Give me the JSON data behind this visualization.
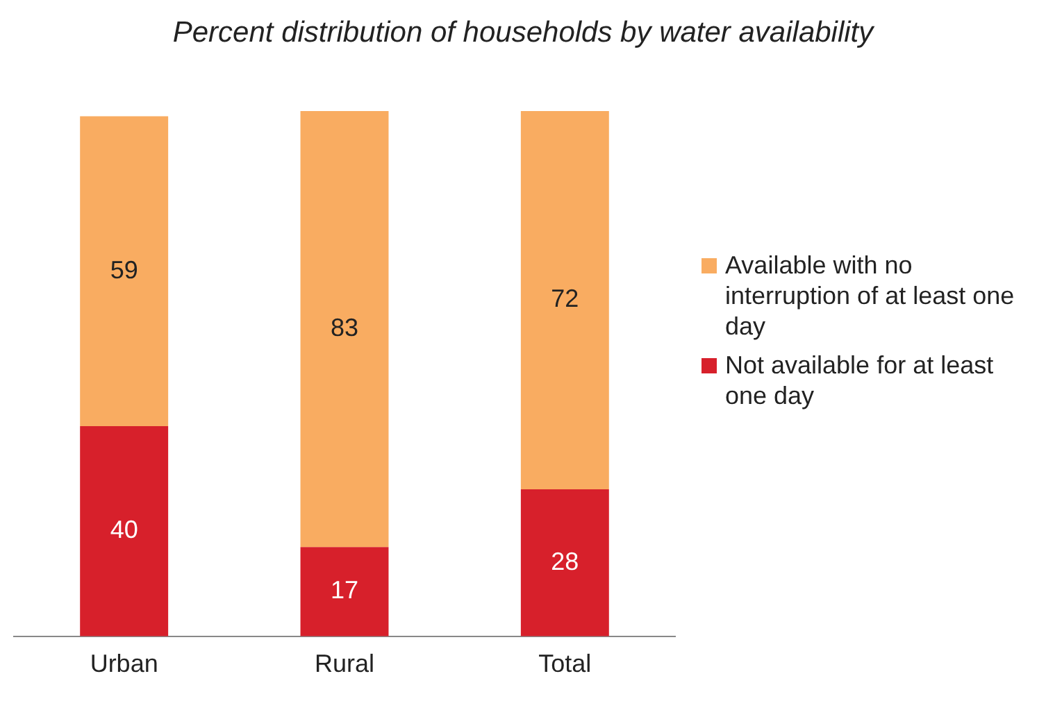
{
  "chart_data": {
    "type": "bar",
    "title": "Percent distribution of households by water availability",
    "categories": [
      "Urban",
      "Rural",
      "Total"
    ],
    "stacked": true,
    "data_labels": true,
    "grid": false,
    "legend": "right",
    "series": [
      {
        "name": "Not available for at least one day",
        "color": "#d7202b",
        "values": [
          40,
          17,
          28
        ]
      },
      {
        "name": "Available with no interruption of at least one day",
        "color": "#f9ac61",
        "values": [
          59,
          83,
          72
        ]
      }
    ]
  }
}
